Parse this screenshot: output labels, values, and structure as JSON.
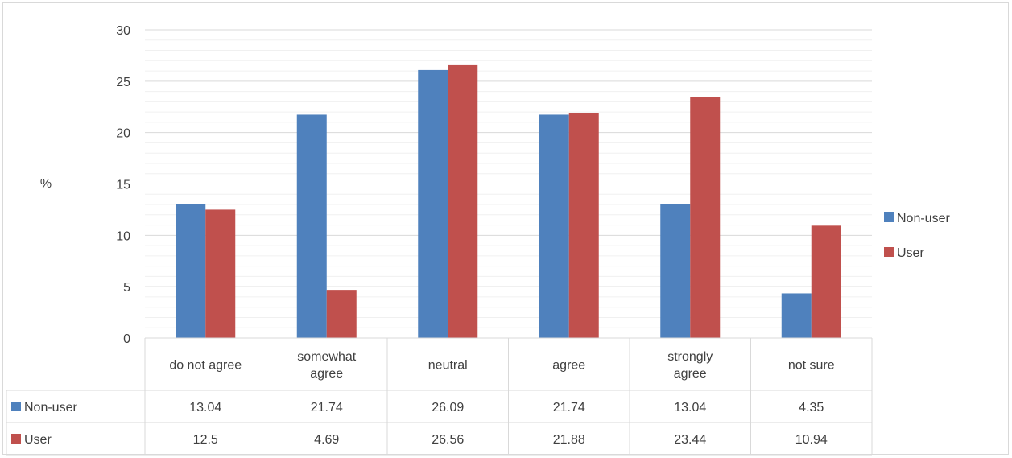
{
  "chart_data": {
    "type": "bar",
    "title": "",
    "xlabel": "",
    "ylabel": "%",
    "ylim": [
      0,
      30
    ],
    "yticks": [
      0,
      5,
      10,
      15,
      20,
      25,
      30
    ],
    "major_step": 5,
    "minor_step": 1,
    "categories": [
      [
        "do not agree"
      ],
      [
        "somewhat",
        "agree"
      ],
      [
        "neutral"
      ],
      [
        "agree"
      ],
      [
        "strongly",
        "agree"
      ],
      [
        "not sure"
      ]
    ],
    "series": [
      {
        "name": "Non-user",
        "color": "#4f81bd",
        "values": [
          13.04,
          21.74,
          26.09,
          21.74,
          13.04,
          4.35
        ],
        "labels": [
          "13.04",
          "21.74",
          "26.09",
          "21.74",
          "13.04",
          "4.35"
        ]
      },
      {
        "name": "User",
        "color": "#c0504d",
        "values": [
          12.5,
          4.69,
          26.56,
          21.88,
          23.44,
          10.94
        ],
        "labels": [
          "12.5",
          "4.69",
          "26.56",
          "21.88",
          "23.44",
          "10.94"
        ]
      }
    ],
    "legend": {
      "position": "right"
    },
    "data_table": true,
    "grid": true
  }
}
